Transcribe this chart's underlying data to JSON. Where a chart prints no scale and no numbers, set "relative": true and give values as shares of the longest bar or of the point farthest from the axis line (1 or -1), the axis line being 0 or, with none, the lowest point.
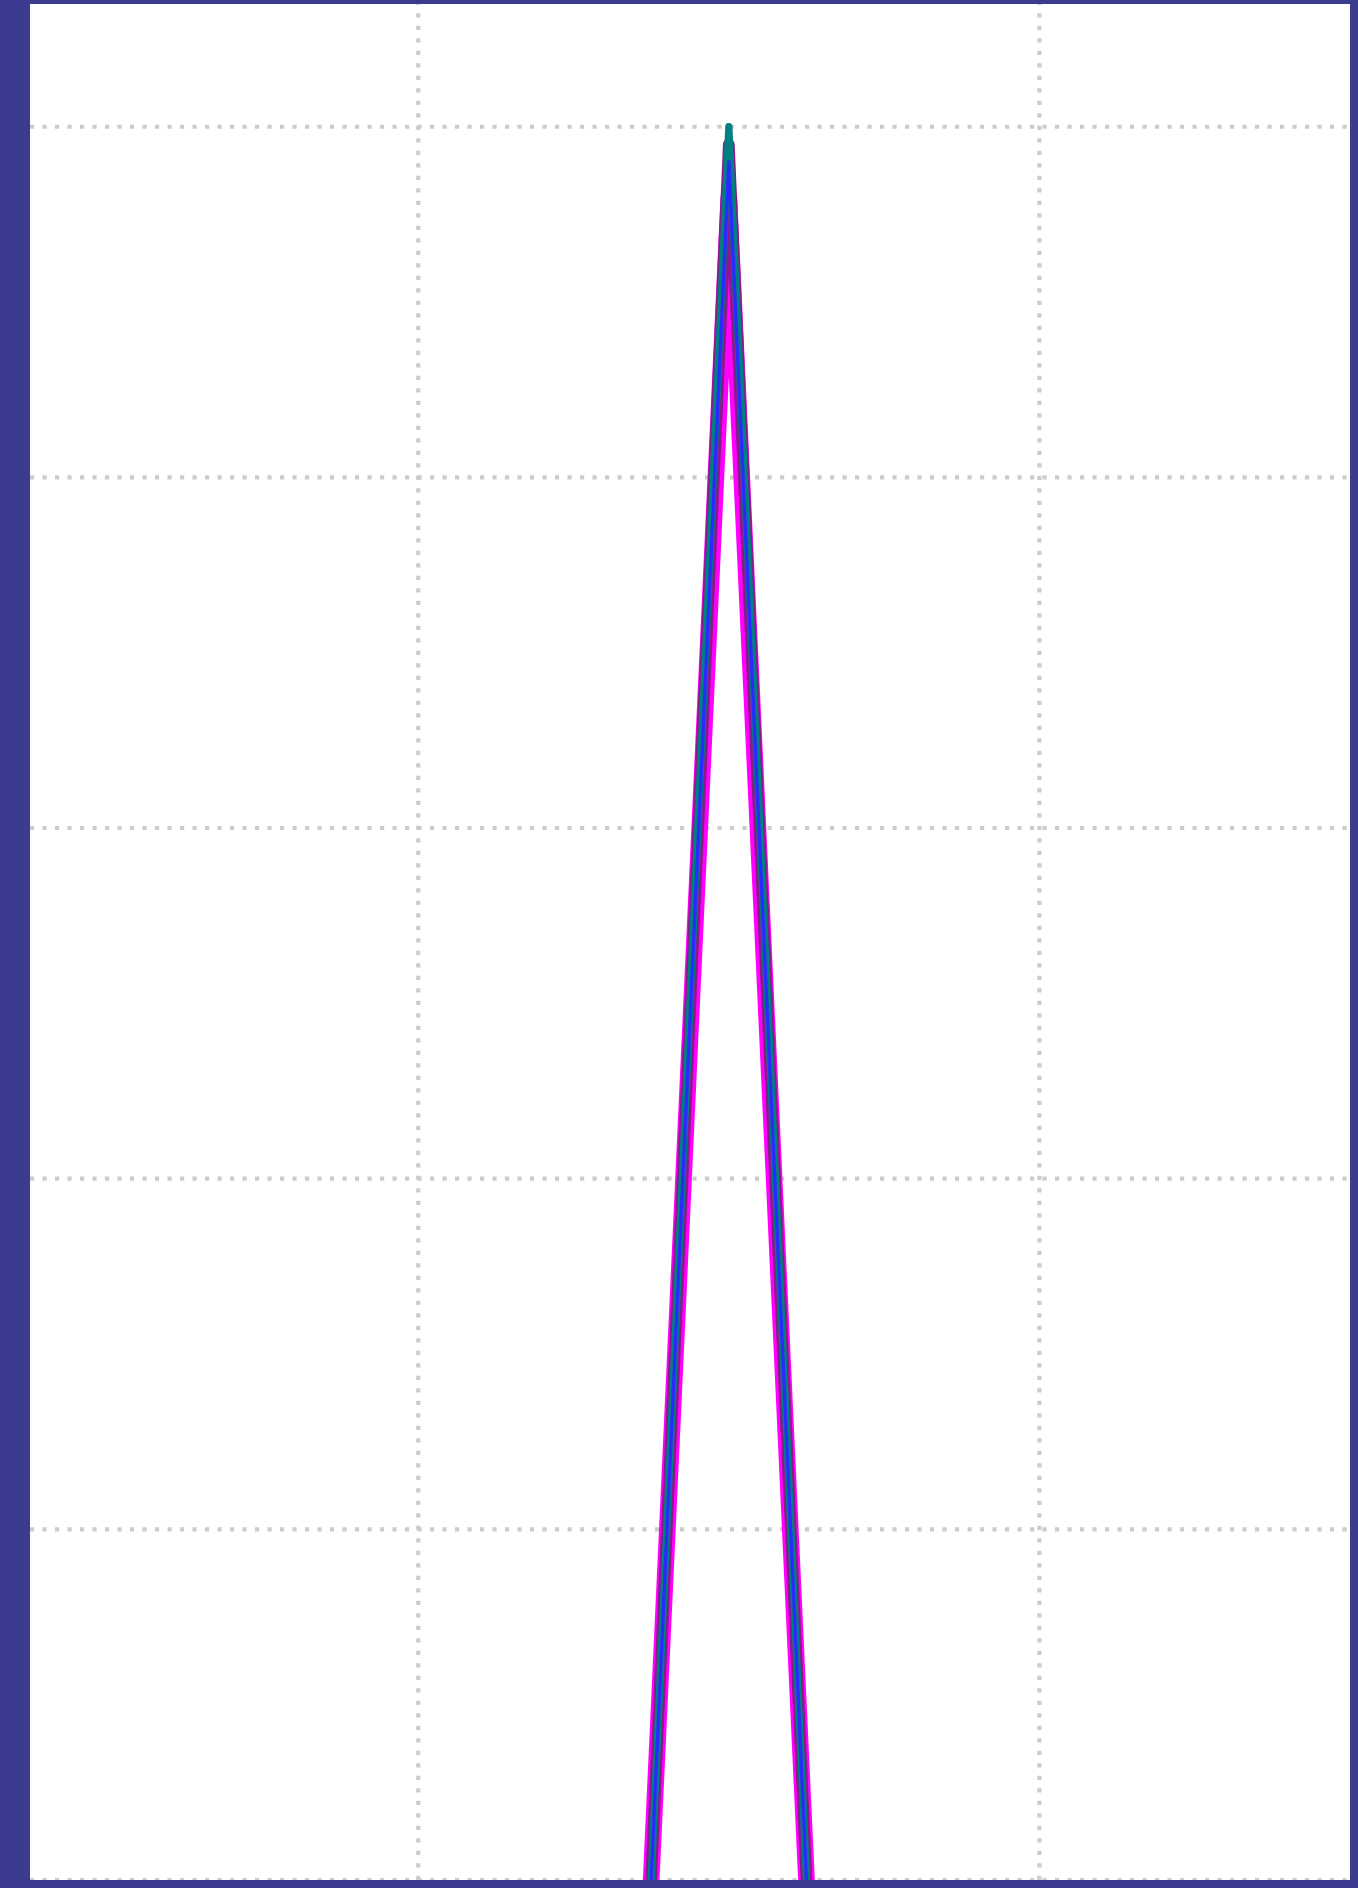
{
  "chart_data": {
    "type": "line",
    "relative": true,
    "grid": true,
    "categories": [
      null,
      null,
      null,
      null,
      null,
      null,
      null,
      null,
      null,
      null,
      null,
      null,
      null,
      null,
      null,
      null,
      null,
      null
    ],
    "series": [
      {
        "color": "#ff00ff",
        "values": [
          null,
          null,
          null,
          null,
          null,
          null,
          null,
          null,
          0,
          0.96,
          0,
          null,
          null,
          null,
          null,
          null,
          null,
          null
        ]
      },
      {
        "color": "#8a1a8a",
        "values": [
          null,
          null,
          null,
          null,
          null,
          null,
          null,
          null,
          0,
          0.99,
          0,
          null,
          null,
          null,
          null,
          null,
          null,
          null
        ]
      },
      {
        "color": "#008080",
        "values": [
          null,
          null,
          null,
          null,
          null,
          null,
          null,
          null,
          0,
          1,
          0,
          null,
          null,
          null,
          null,
          null,
          null,
          null
        ]
      },
      {
        "color": "#2a2aff",
        "values": [
          null,
          null,
          null,
          null,
          null,
          null,
          null,
          null,
          0,
          0.98,
          0,
          null,
          null,
          null,
          null,
          null,
          null,
          null
        ]
      }
    ]
  }
}
